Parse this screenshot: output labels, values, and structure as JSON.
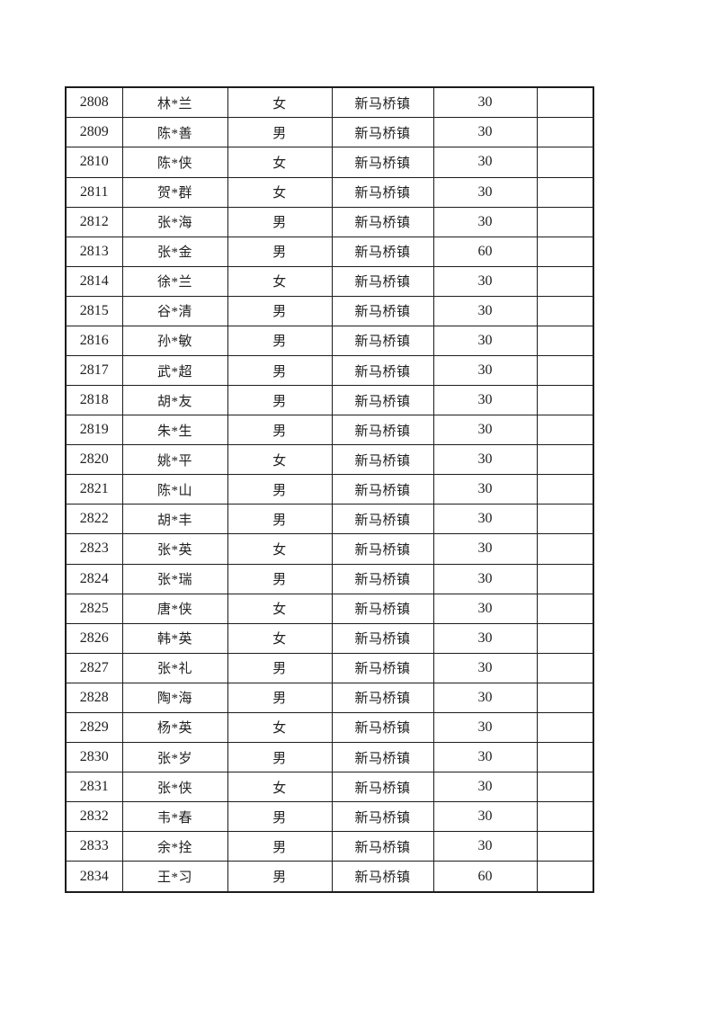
{
  "page": {
    "background_color": "#ffffff",
    "border_color": "#1c1c1c",
    "text_color": "#1f1f1f"
  },
  "table": {
    "columns": [
      {
        "key": "serial",
        "name": "serial-number-cell",
        "css": "serial-cell"
      },
      {
        "key": "name",
        "name": "person-name-cell",
        "css": "name-cell"
      },
      {
        "key": "gender",
        "name": "gender-cell",
        "css": "gender-cell"
      },
      {
        "key": "town",
        "name": "town-cell",
        "css": "town-cell"
      },
      {
        "key": "amount",
        "name": "amount-cell",
        "css": "amount-cell"
      },
      {
        "key": "note",
        "name": "note-cell",
        "css": "note-cell"
      }
    ],
    "rows": [
      {
        "serial": "2808",
        "name": "林*兰",
        "gender": "女",
        "town": "新马桥镇",
        "amount": "30",
        "note": ""
      },
      {
        "serial": "2809",
        "name": "陈*善",
        "gender": "男",
        "town": "新马桥镇",
        "amount": "30",
        "note": ""
      },
      {
        "serial": "2810",
        "name": "陈*侠",
        "gender": "女",
        "town": "新马桥镇",
        "amount": "30",
        "note": ""
      },
      {
        "serial": "2811",
        "name": "贺*群",
        "gender": "女",
        "town": "新马桥镇",
        "amount": "30",
        "note": ""
      },
      {
        "serial": "2812",
        "name": "张*海",
        "gender": "男",
        "town": "新马桥镇",
        "amount": "30",
        "note": ""
      },
      {
        "serial": "2813",
        "name": "张*金",
        "gender": "男",
        "town": "新马桥镇",
        "amount": "60",
        "note": ""
      },
      {
        "serial": "2814",
        "name": "徐*兰",
        "gender": "女",
        "town": "新马桥镇",
        "amount": "30",
        "note": ""
      },
      {
        "serial": "2815",
        "name": "谷*清",
        "gender": "男",
        "town": "新马桥镇",
        "amount": "30",
        "note": ""
      },
      {
        "serial": "2816",
        "name": "孙*敏",
        "gender": "男",
        "town": "新马桥镇",
        "amount": "30",
        "note": ""
      },
      {
        "serial": "2817",
        "name": "武*超",
        "gender": "男",
        "town": "新马桥镇",
        "amount": "30",
        "note": ""
      },
      {
        "serial": "2818",
        "name": "胡*友",
        "gender": "男",
        "town": "新马桥镇",
        "amount": "30",
        "note": ""
      },
      {
        "serial": "2819",
        "name": "朱*生",
        "gender": "男",
        "town": "新马桥镇",
        "amount": "30",
        "note": ""
      },
      {
        "serial": "2820",
        "name": "姚*平",
        "gender": "女",
        "town": "新马桥镇",
        "amount": "30",
        "note": ""
      },
      {
        "serial": "2821",
        "name": "陈*山",
        "gender": "男",
        "town": "新马桥镇",
        "amount": "30",
        "note": ""
      },
      {
        "serial": "2822",
        "name": "胡*丰",
        "gender": "男",
        "town": "新马桥镇",
        "amount": "30",
        "note": ""
      },
      {
        "serial": "2823",
        "name": "张*英",
        "gender": "女",
        "town": "新马桥镇",
        "amount": "30",
        "note": ""
      },
      {
        "serial": "2824",
        "name": "张*瑞",
        "gender": "男",
        "town": "新马桥镇",
        "amount": "30",
        "note": ""
      },
      {
        "serial": "2825",
        "name": "唐*侠",
        "gender": "女",
        "town": "新马桥镇",
        "amount": "30",
        "note": ""
      },
      {
        "serial": "2826",
        "name": "韩*英",
        "gender": "女",
        "town": "新马桥镇",
        "amount": "30",
        "note": ""
      },
      {
        "serial": "2827",
        "name": "张*礼",
        "gender": "男",
        "town": "新马桥镇",
        "amount": "30",
        "note": ""
      },
      {
        "serial": "2828",
        "name": "陶*海",
        "gender": "男",
        "town": "新马桥镇",
        "amount": "30",
        "note": ""
      },
      {
        "serial": "2829",
        "name": "杨*英",
        "gender": "女",
        "town": "新马桥镇",
        "amount": "30",
        "note": ""
      },
      {
        "serial": "2830",
        "name": "张*岁",
        "gender": "男",
        "town": "新马桥镇",
        "amount": "30",
        "note": ""
      },
      {
        "serial": "2831",
        "name": "张*侠",
        "gender": "女",
        "town": "新马桥镇",
        "amount": "30",
        "note": ""
      },
      {
        "serial": "2832",
        "name": "韦*春",
        "gender": "男",
        "town": "新马桥镇",
        "amount": "30",
        "note": ""
      },
      {
        "serial": "2833",
        "name": "余*拴",
        "gender": "男",
        "town": "新马桥镇",
        "amount": "30",
        "note": ""
      },
      {
        "serial": "2834",
        "name": "王*习",
        "gender": "男",
        "town": "新马桥镇",
        "amount": "60",
        "note": ""
      }
    ]
  }
}
